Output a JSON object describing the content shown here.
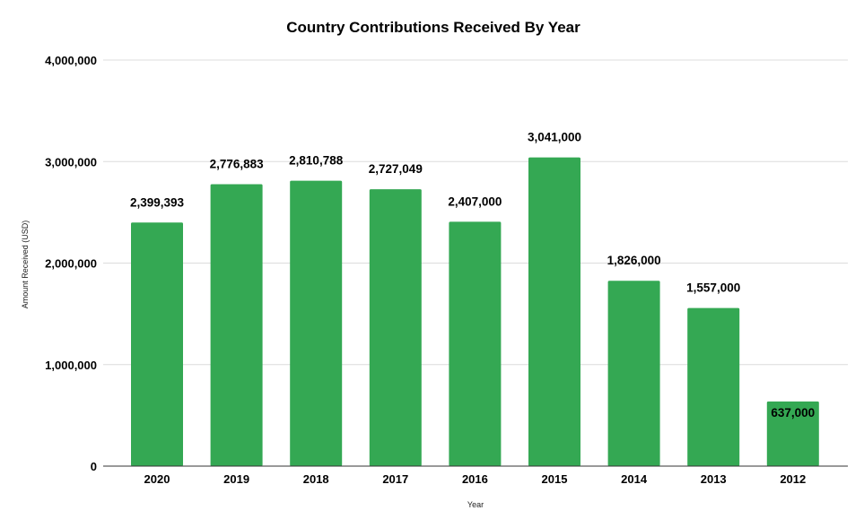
{
  "chart_data": {
    "type": "bar",
    "title": "Country Contributions Received By Year",
    "xlabel": "Year",
    "ylabel": "Amount Received (USD)",
    "categories": [
      "2020",
      "2019",
      "2018",
      "2017",
      "2016",
      "2015",
      "2014",
      "2013",
      "2012"
    ],
    "values": [
      2399393,
      2776883,
      2810788,
      2727049,
      2407000,
      3041000,
      1826000,
      1557000,
      637000
    ],
    "data_labels": [
      "2,399,393",
      "2,776,883",
      "2,810,788",
      "2,727,049",
      "2,407,000",
      "3,041,000",
      "1,826,000",
      "1,557,000",
      "637,000"
    ],
    "ylim": [
      0,
      4000000
    ],
    "yticks": [
      0,
      1000000,
      2000000,
      3000000,
      4000000
    ],
    "ytick_labels": [
      "0",
      "1,000,000",
      "2,000,000",
      "3,000,000",
      "4,000,000"
    ],
    "grid": true,
    "legend": "none",
    "bar_color": "#34a853"
  }
}
